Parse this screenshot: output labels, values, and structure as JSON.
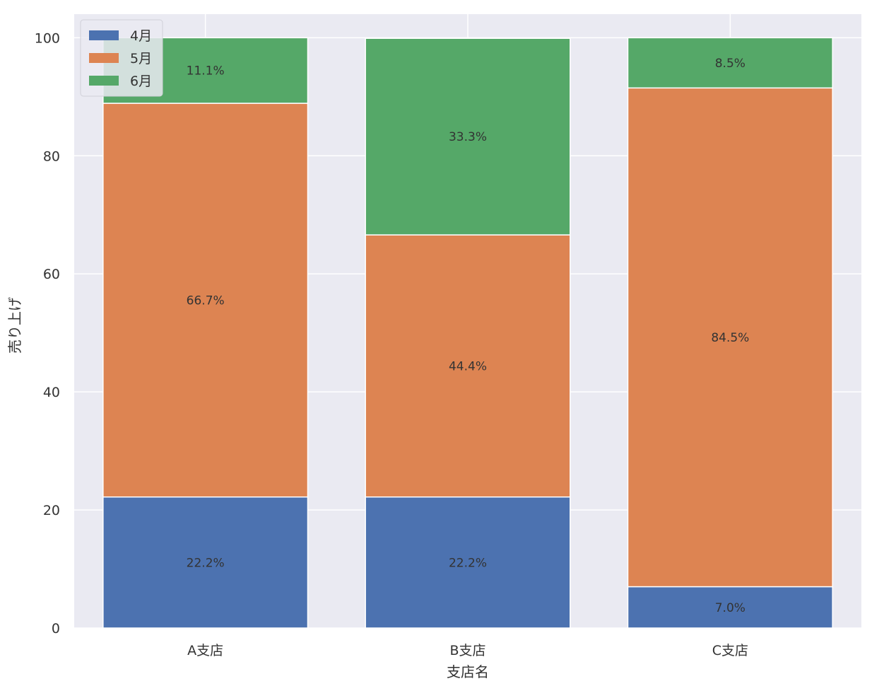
{
  "chart_data": {
    "type": "bar",
    "stacked": true,
    "title": "",
    "xlabel": "支店名",
    "ylabel": "売り上げ",
    "categories": [
      "A支店",
      "B支店",
      "C支店"
    ],
    "ylim": [
      0,
      104
    ],
    "yticks": [
      0,
      20,
      40,
      60,
      80,
      100
    ],
    "grid": true,
    "legend_position": "top-left",
    "series": [
      {
        "name": "4月",
        "color": "#4C72B0",
        "values": [
          22.2,
          22.2,
          7.0
        ],
        "labels": [
          "22.2%",
          "22.2%",
          "7.0%"
        ]
      },
      {
        "name": "5月",
        "color": "#DD8452",
        "values": [
          66.7,
          44.4,
          84.5
        ],
        "labels": [
          "66.7%",
          "44.4%",
          "84.5%"
        ]
      },
      {
        "name": "6月",
        "color": "#55A868",
        "values": [
          11.1,
          33.3,
          8.5
        ],
        "labels": [
          "11.1%",
          "33.3%",
          "8.5%"
        ]
      }
    ]
  }
}
